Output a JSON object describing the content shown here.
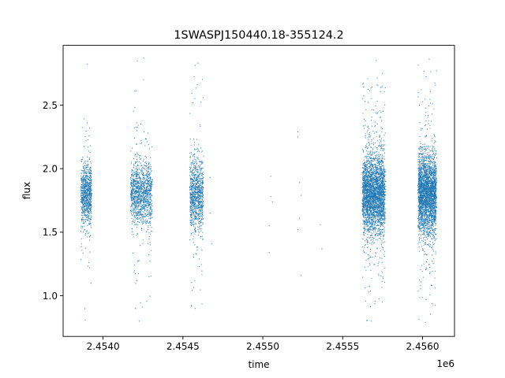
{
  "chart_data": {
    "type": "scatter",
    "title": "1SWASPJ150440.18-355124.2",
    "xlabel": "time",
    "ylabel": "flux",
    "x_offset_label": "1e6",
    "xlim": [
      2.45375,
      2.4562
    ],
    "ylim": [
      0.68,
      2.97
    ],
    "x_ticks": [
      2.454,
      2.4545,
      2.455,
      2.4555,
      2.456
    ],
    "x_tick_labels": [
      "2.4540",
      "2.4545",
      "2.4550",
      "2.4555",
      "2.4560"
    ],
    "y_ticks": [
      1.0,
      1.5,
      2.0,
      2.5
    ],
    "y_tick_labels": [
      "1.0",
      "1.5",
      "2.0",
      "2.5"
    ],
    "grid": false,
    "marker_color": "#1f77b4",
    "point_clusters": [
      {
        "x_start": 2.45386,
        "x_end": 2.45393,
        "y_center": 1.8,
        "y_spread": 0.11,
        "points": 900,
        "min_y": 0.81,
        "max_y": 2.82
      },
      {
        "x_start": 2.45417,
        "x_end": 2.45431,
        "y_center": 1.8,
        "y_spread": 0.12,
        "points": 1300,
        "min_y": 0.8,
        "max_y": 2.87
      },
      {
        "x_start": 2.45454,
        "x_end": 2.45463,
        "y_center": 1.8,
        "y_spread": 0.13,
        "points": 1000,
        "min_y": 0.9,
        "max_y": 2.83
      },
      {
        "x_start": 2.45562,
        "x_end": 2.45577,
        "y_center": 1.8,
        "y_spread": 0.15,
        "points": 3200,
        "min_y": 0.8,
        "max_y": 2.85
      },
      {
        "x_start": 2.45597,
        "x_end": 2.45609,
        "y_center": 1.8,
        "y_spread": 0.15,
        "points": 3000,
        "min_y": 0.79,
        "max_y": 2.86
      }
    ],
    "isolated_points": [
      [
        2.45467,
        1.93
      ],
      [
        2.45467,
        1.65
      ],
      [
        2.45468,
        1.41
      ],
      [
        2.45505,
        1.94
      ],
      [
        2.45505,
        1.78
      ],
      [
        2.45506,
        1.74
      ],
      [
        2.45504,
        1.55
      ],
      [
        2.45504,
        1.34
      ],
      [
        2.45522,
        2.29
      ],
      [
        2.45522,
        2.25
      ],
      [
        2.45523,
        1.89
      ],
      [
        2.45524,
        1.79
      ],
      [
        2.45523,
        1.61
      ],
      [
        2.45522,
        1.52
      ],
      [
        2.45524,
        1.16
      ],
      [
        2.45536,
        1.56
      ],
      [
        2.45537,
        1.37
      ]
    ]
  }
}
